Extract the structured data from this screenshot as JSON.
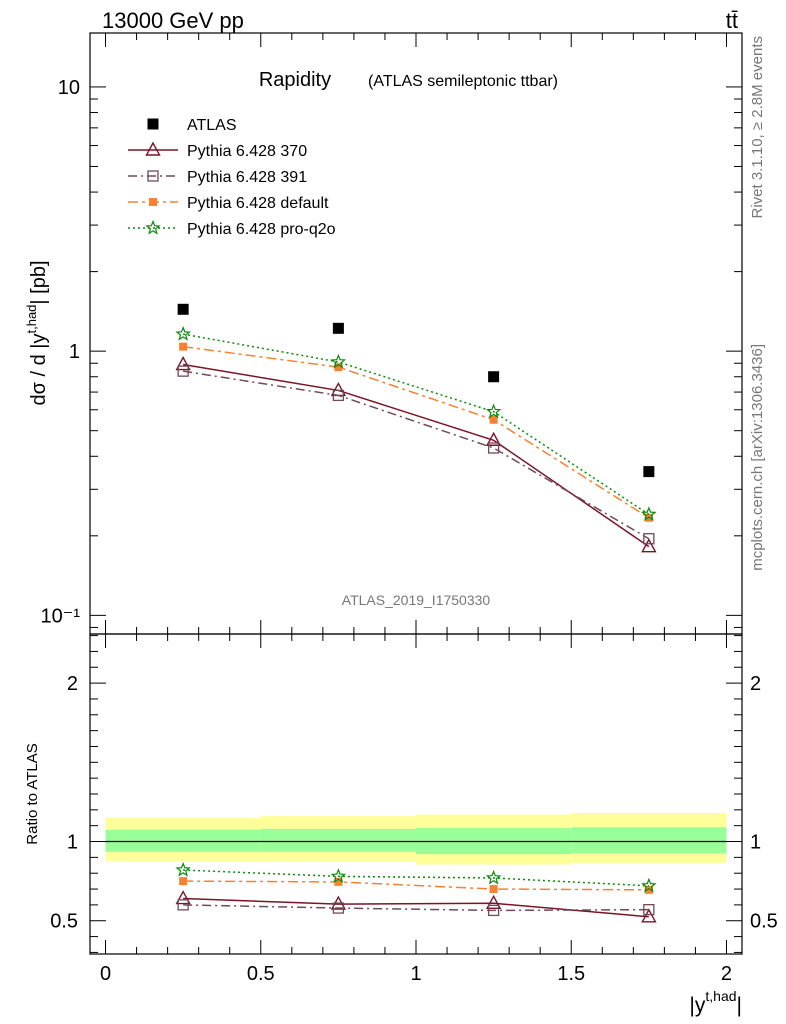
{
  "header": {
    "energy_label": "13000 GeV pp",
    "process_label": "tt̄"
  },
  "side_labels": {
    "rivet": "Rivet 3.1.10, ≥ 2.8M events",
    "mcplots": "mcplots.cern.ch [arXiv:1306.3436]"
  },
  "watermark": "ATLAS_2019_I1750330",
  "colors": {
    "atlas": "#000000",
    "p370": "#7a1426",
    "p391": "#6e4a5a",
    "default": "#f58232",
    "proq2o": "#0a8a0a",
    "band_stat": "#99ff99",
    "band_total": "#ffff99"
  },
  "chart_data": [
    {
      "type": "scatter",
      "title": "Rapidity",
      "subtitle": "(ATLAS semileptonic ttbar)",
      "ylabel": "dσ / d |y^{t,had}| [pb]",
      "xlabel": "|y^{t,had}|",
      "yscale": "log",
      "ylim": [
        0.085,
        16
      ],
      "xlim": [
        -0.05,
        2.05
      ],
      "y_ticks": [
        {
          "value": 10,
          "label": "10"
        },
        {
          "value": 1,
          "label": "1"
        },
        {
          "value": 0.1,
          "label": "10⁻¹"
        }
      ],
      "legend_position": "top-left",
      "x": [
        0.25,
        0.75,
        1.25,
        1.75
      ],
      "series": [
        {
          "name": "ATLAS",
          "key": "atlas",
          "marker": "square-filled",
          "line": "none",
          "values": [
            1.44,
            1.22,
            0.8,
            0.35
          ]
        },
        {
          "name": "Pythia 6.428 370",
          "key": "p370",
          "marker": "triangle-open",
          "line": "solid",
          "values": [
            0.89,
            0.71,
            0.46,
            0.182
          ]
        },
        {
          "name": "Pythia 6.428 391",
          "key": "p391",
          "marker": "square-open",
          "line": "dashdot",
          "values": [
            0.84,
            0.68,
            0.43,
            0.195
          ]
        },
        {
          "name": "Pythia 6.428 default",
          "key": "default",
          "marker": "square-filled-small",
          "line": "dashdot2",
          "values": [
            1.04,
            0.87,
            0.55,
            0.234
          ]
        },
        {
          "name": "Pythia 6.428 pro-q2o",
          "key": "proq2o",
          "marker": "star",
          "line": "dotted",
          "values": [
            1.16,
            0.91,
            0.59,
            0.241
          ]
        }
      ]
    },
    {
      "type": "line",
      "ylabel": "Ratio to ATLAS",
      "xlabel": "|y^{t,had}|",
      "ylim": [
        0.29,
        2.31
      ],
      "xlim": [
        -0.05,
        2.05
      ],
      "y_ticks": [
        {
          "value": 2,
          "label": "2"
        },
        {
          "value": 1,
          "label": "1"
        },
        {
          "value": 0.5,
          "label": "0.5"
        }
      ],
      "x_ticks": [
        {
          "value": 0,
          "label": "0"
        },
        {
          "value": 0.5,
          "label": "0.5"
        },
        {
          "value": 1,
          "label": "1"
        },
        {
          "value": 1.5,
          "label": "1.5"
        },
        {
          "value": 2,
          "label": "2"
        }
      ],
      "bins": [
        [
          0,
          0.5
        ],
        [
          0.5,
          1.0
        ],
        [
          1.0,
          1.5
        ],
        [
          1.5,
          2.0
        ]
      ],
      "band_stat": [
        [
          0.935,
          1.075
        ],
        [
          0.935,
          1.08
        ],
        [
          0.92,
          1.085
        ],
        [
          0.925,
          1.09
        ]
      ],
      "band_total": [
        [
          0.875,
          1.15
        ],
        [
          0.875,
          1.16
        ],
        [
          0.855,
          1.17
        ],
        [
          0.865,
          1.18
        ]
      ],
      "x": [
        0.25,
        0.75,
        1.25,
        1.75
      ],
      "series": [
        {
          "name": "Pythia 6.428 370",
          "key": "p370",
          "values": [
            0.64,
            0.605,
            0.61,
            0.525
          ]
        },
        {
          "name": "Pythia 6.428 391",
          "key": "p391",
          "values": [
            0.6,
            0.58,
            0.565,
            0.57
          ]
        },
        {
          "name": "Pythia 6.428 default",
          "key": "default",
          "values": [
            0.75,
            0.745,
            0.7,
            0.695
          ]
        },
        {
          "name": "Pythia 6.428 pro-q2o",
          "key": "proq2o",
          "values": [
            0.82,
            0.78,
            0.77,
            0.72
          ]
        }
      ]
    }
  ]
}
